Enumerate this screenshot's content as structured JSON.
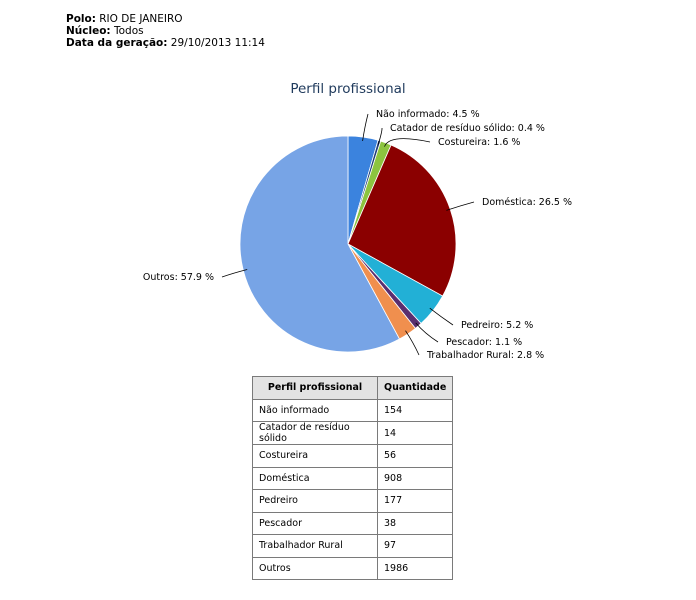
{
  "header": {
    "polo_label": "Polo:",
    "polo_value": "RIO DE JANEIRO",
    "nucleo_label": "Núcleo:",
    "nucleo_value": "Todos",
    "data_label": "Data da geração:",
    "data_value": "29/10/2013 11:14"
  },
  "chart_data": {
    "type": "pie",
    "title": "Perfil profissional",
    "slices": [
      {
        "label": "Não informado",
        "percent": 4.5,
        "value": 154,
        "color": "#3b83de"
      },
      {
        "label": "Catador de resíduo sólido",
        "percent": 0.4,
        "value": 14,
        "color": "#1f3e7a"
      },
      {
        "label": "Costureira",
        "percent": 1.6,
        "value": 56,
        "color": "#8cc43f"
      },
      {
        "label": "Doméstica",
        "percent": 26.5,
        "value": 908,
        "color": "#8b0000"
      },
      {
        "label": "Pedreiro",
        "percent": 5.2,
        "value": 177,
        "color": "#22b0d6"
      },
      {
        "label": "Pescador",
        "percent": 1.1,
        "value": 38,
        "color": "#5a2e6e"
      },
      {
        "label": "Trabalhador Rural",
        "percent": 2.8,
        "value": 97,
        "color": "#f08f4e"
      },
      {
        "label": "Outros",
        "percent": 57.9,
        "value": 1986,
        "color": "#77a4e6"
      }
    ]
  },
  "table": {
    "headers": [
      "Perfil profissional",
      "Quantidade"
    ],
    "rows": [
      [
        "Não informado",
        "154"
      ],
      [
        "Catador de resíduo sólido",
        "14"
      ],
      [
        "Costureira",
        "56"
      ],
      [
        "Doméstica",
        "908"
      ],
      [
        "Pedreiro",
        "177"
      ],
      [
        "Pescador",
        "38"
      ],
      [
        "Trabalhador Rural",
        "97"
      ],
      [
        "Outros",
        "1986"
      ]
    ]
  }
}
